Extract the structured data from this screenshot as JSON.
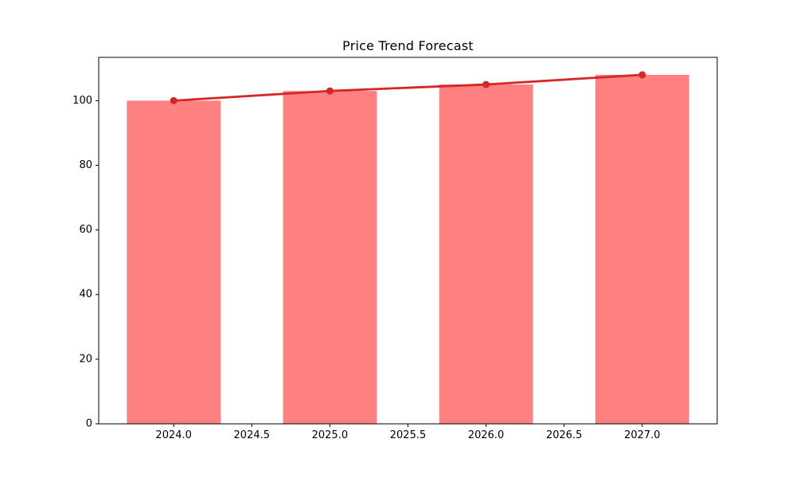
{
  "chart_data": {
    "type": "bar",
    "title": "Price Trend Forecast",
    "categories": [
      "2024",
      "2025",
      "2026",
      "2027"
    ],
    "x": [
      2024,
      2025,
      2026,
      2027
    ],
    "series": [
      {
        "name": "price-bars",
        "type": "bar",
        "values": [
          100,
          103,
          105,
          108
        ],
        "color": "#ff8080",
        "bar_width": 0.6
      },
      {
        "name": "trend-line",
        "type": "line",
        "values": [
          100,
          103,
          105,
          108
        ],
        "color": "#d62728",
        "marker": "circle",
        "line_width": 2.8,
        "marker_size": 4.5
      }
    ],
    "xlabel": "",
    "ylabel": "",
    "xlim": [
      2023.52,
      2027.48
    ],
    "ylim": [
      0,
      113.4
    ],
    "xticks": {
      "values": [
        2024,
        2024.5,
        2025,
        2025.5,
        2026,
        2026.5,
        2027
      ],
      "labels": [
        "2024.0",
        "2024.5",
        "2025.0",
        "2025.5",
        "2026.0",
        "2026.5",
        "2027.0"
      ]
    },
    "yticks": {
      "values": [
        0,
        20,
        40,
        60,
        80,
        100
      ],
      "labels": [
        "0",
        "20",
        "40",
        "60",
        "80",
        "100"
      ]
    },
    "grid": false,
    "legend": "none",
    "axis_color": "#000000",
    "background": "#ffffff"
  }
}
